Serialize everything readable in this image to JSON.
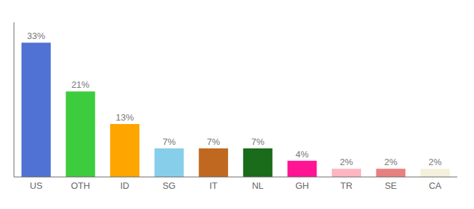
{
  "chart_data": {
    "type": "bar",
    "categories": [
      "US",
      "OTH",
      "ID",
      "SG",
      "IT",
      "NL",
      "GH",
      "TR",
      "SE",
      "CA"
    ],
    "values": [
      33,
      21,
      13,
      7,
      7,
      7,
      4,
      2,
      2,
      2
    ],
    "value_labels": [
      "33%",
      "21%",
      "13%",
      "7%",
      "7%",
      "7%",
      "4%",
      "2%",
      "2%",
      "2%"
    ],
    "data_labels": true,
    "colors": [
      "#4f72d4",
      "#3dcc3d",
      "#FFA500",
      "#87CEEB",
      "#c06820",
      "#1a6b1a",
      "#FF1493",
      "#FFB6C1",
      "#E88080",
      "#F5F0DC"
    ],
    "ylim": [
      0,
      38
    ],
    "tick_labels": "x",
    "grid": false
  }
}
